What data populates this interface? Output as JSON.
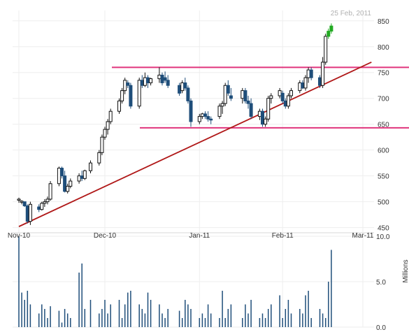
{
  "header": {
    "date_stamp": "25 Feb, 2011"
  },
  "chart_data": [
    {
      "type": "candlestick",
      "ylim": [
        440,
        870
      ],
      "y_ticks": [
        "850",
        "800",
        "750",
        "700",
        "650",
        "600",
        "550",
        "500",
        "450"
      ],
      "x_ticks": [
        "Nov-10",
        "Dec-10",
        "Jan-11",
        "Feb-11",
        "Mar-11"
      ],
      "grid": true,
      "colors": {
        "up": "#ffffff",
        "down": "#1f4e7a",
        "recent": "#22aa22",
        "level": "#e0347c",
        "trend": "#b01818"
      },
      "levels": [
        760,
        643
      ],
      "candles": [
        [
          503,
          508,
          498,
          505,
          1
        ],
        [
          501,
          503,
          495,
          500,
          1
        ],
        [
          500,
          500,
          490,
          492,
          -1
        ],
        [
          492,
          495,
          458,
          462,
          -1
        ],
        [
          462,
          500,
          455,
          495,
          1
        ],
        [
          490,
          495,
          480,
          485,
          -1
        ],
        [
          485,
          500,
          483,
          497,
          1
        ],
        [
          497,
          505,
          490,
          500,
          1
        ],
        [
          500,
          510,
          495,
          505,
          1
        ],
        [
          505,
          540,
          502,
          535,
          1
        ],
        [
          535,
          568,
          530,
          565,
          1
        ],
        [
          565,
          568,
          545,
          550,
          -1
        ],
        [
          550,
          560,
          518,
          520,
          -1
        ],
        [
          520,
          535,
          516,
          530,
          1
        ],
        [
          530,
          545,
          526,
          540,
          1
        ],
        [
          540,
          555,
          535,
          550,
          1
        ],
        [
          550,
          560,
          540,
          545,
          -1
        ],
        [
          545,
          562,
          542,
          560,
          1
        ],
        [
          560,
          580,
          555,
          575,
          1
        ],
        [
          575,
          600,
          570,
          595,
          1
        ],
        [
          595,
          630,
          590,
          625,
          1
        ],
        [
          625,
          645,
          620,
          640,
          1
        ],
        [
          640,
          660,
          630,
          655,
          1
        ],
        [
          655,
          680,
          650,
          675,
          1
        ],
        [
          675,
          700,
          670,
          695,
          1
        ],
        [
          695,
          720,
          690,
          715,
          1
        ],
        [
          715,
          740,
          708,
          735,
          1
        ],
        [
          730,
          735,
          720,
          725,
          -1
        ],
        [
          725,
          730,
          680,
          685,
          -1
        ],
        [
          685,
          740,
          680,
          735,
          1
        ],
        [
          735,
          745,
          720,
          725,
          -1
        ],
        [
          725,
          750,
          722,
          740,
          1
        ],
        [
          740,
          745,
          720,
          730,
          -1
        ],
        [
          730,
          740,
          725,
          738,
          1
        ],
        [
          738,
          760,
          730,
          745,
          1
        ],
        [
          745,
          750,
          725,
          730,
          -1
        ],
        [
          740,
          752,
          730,
          735,
          -1
        ],
        [
          735,
          745,
          720,
          725,
          -1
        ],
        [
          725,
          730,
          705,
          710,
          -1
        ],
        [
          715,
          735,
          710,
          730,
          1
        ],
        [
          730,
          740,
          715,
          720,
          -1
        ],
        [
          720,
          725,
          690,
          695,
          -1
        ],
        [
          695,
          700,
          645,
          655,
          -1
        ],
        [
          655,
          670,
          650,
          665,
          1
        ],
        [
          665,
          672,
          660,
          670,
          1
        ],
        [
          670,
          675,
          660,
          665,
          -1
        ],
        [
          665,
          675,
          655,
          660,
          -1
        ],
        [
          660,
          665,
          650,
          658,
          -1
        ],
        [
          665,
          690,
          660,
          685,
          1
        ],
        [
          685,
          695,
          670,
          690,
          1
        ],
        [
          690,
          730,
          685,
          725,
          1
        ],
        [
          725,
          735,
          705,
          710,
          -1
        ],
        [
          705,
          720,
          695,
          700,
          -1
        ],
        [
          700,
          720,
          690,
          715,
          1
        ],
        [
          715,
          720,
          690,
          695,
          -1
        ],
        [
          695,
          705,
          680,
          690,
          -1
        ],
        [
          690,
          700,
          660,
          665,
          -1
        ],
        [
          665,
          680,
          658,
          675,
          1
        ],
        [
          675,
          680,
          645,
          650,
          -1
        ],
        [
          650,
          665,
          645,
          660,
          1
        ],
        [
          660,
          705,
          655,
          700,
          1
        ],
        [
          700,
          710,
          690,
          705,
          1
        ],
        [
          705,
          720,
          700,
          715,
          1
        ],
        [
          710,
          715,
          690,
          695,
          -1
        ],
        [
          695,
          700,
          680,
          685,
          -1
        ],
        [
          685,
          710,
          680,
          705,
          1
        ],
        [
          705,
          720,
          700,
          715,
          1
        ],
        [
          715,
          735,
          710,
          730,
          1
        ],
        [
          730,
          735,
          718,
          720,
          -1
        ],
        [
          720,
          745,
          715,
          740,
          1
        ],
        [
          740,
          760,
          730,
          755,
          1
        ],
        [
          755,
          760,
          735,
          740,
          -1
        ],
        [
          740,
          745,
          720,
          725,
          -1
        ],
        [
          725,
          780,
          720,
          770,
          1
        ],
        [
          770,
          825,
          765,
          820,
          1
        ],
        [
          820,
          835,
          815,
          830,
          2
        ],
        [
          830,
          845,
          825,
          840,
          2
        ]
      ],
      "candle_dates": [
        "2010-11-01",
        "2010-11-02",
        "2010-11-03",
        "2010-11-04",
        "2010-11-05",
        "2010-11-08",
        "2010-11-09",
        "2010-11-10",
        "2010-11-11",
        "2010-11-12",
        "2010-11-15",
        "2010-11-16",
        "2010-11-17",
        "2010-11-18",
        "2010-11-19",
        "2010-11-22",
        "2010-11-23",
        "2010-11-24",
        "2010-11-26",
        "2010-11-29",
        "2010-11-30",
        "2010-12-01",
        "2010-12-02",
        "2010-12-03",
        "2010-12-06",
        "2010-12-07",
        "2010-12-08",
        "2010-12-09",
        "2010-12-10",
        "2010-12-13",
        "2010-12-14",
        "2010-12-15",
        "2010-12-16",
        "2010-12-17",
        "2010-12-20",
        "2010-12-21",
        "2010-12-22",
        "2010-12-23",
        "2010-12-27",
        "2010-12-28",
        "2010-12-29",
        "2010-12-30",
        "2010-12-31",
        "2011-01-03",
        "2011-01-04",
        "2011-01-05",
        "2011-01-06",
        "2011-01-07",
        "2011-01-10",
        "2011-01-11",
        "2011-01-12",
        "2011-01-13",
        "2011-01-14",
        "2011-01-18",
        "2011-01-19",
        "2011-01-20",
        "2011-01-21",
        "2011-01-24",
        "2011-01-25",
        "2011-01-26",
        "2011-01-27",
        "2011-01-28",
        "2011-01-31",
        "2011-02-01",
        "2011-02-02",
        "2011-02-03",
        "2011-02-04",
        "2011-02-07",
        "2011-02-08",
        "2011-02-09",
        "2011-02-10",
        "2011-02-11",
        "2011-02-14",
        "2011-02-15",
        "2011-02-16",
        "2011-02-17",
        "2011-02-18"
      ],
      "trendline": [
        [
          "2010-11-01",
          452
        ],
        [
          "2011-03-04",
          770
        ]
      ]
    },
    {
      "type": "bar",
      "ylabel": "Millions",
      "ylim": [
        0,
        10
      ],
      "y_ticks": [
        "10.0",
        "5.0",
        "0.0"
      ],
      "grid": true,
      "color": "#1f4e7a",
      "values": [
        10.0,
        3.8,
        3.0,
        4.0,
        2.5,
        1.5,
        2.5,
        2.0,
        1.0,
        2.3,
        1.8,
        0.5,
        2.0,
        1.5,
        1.0,
        6.0,
        7.0,
        2.0,
        3.0,
        1.5,
        2.0,
        3.0,
        1.5,
        2.5,
        3.0,
        1.0,
        2.5,
        3.8,
        4.0,
        2.5,
        2.0,
        1.5,
        3.8,
        3.0,
        2.5,
        1.5,
        1.0,
        2.0,
        1.8,
        1.0,
        3.0,
        2.5,
        2.0,
        1.0,
        1.5,
        1.0,
        2.5,
        1.5,
        1.0,
        4.0,
        1.0,
        2.0,
        2.5,
        1.0,
        2.5,
        1.5,
        3.0,
        1.0,
        1.5,
        1.0,
        2.0,
        2.5,
        3.5,
        1.0,
        2.0,
        3.0,
        1.5,
        2.0,
        1.5,
        3.5,
        4.0,
        1.0,
        2.0,
        1.5,
        1.0,
        5.0,
        8.5
      ],
      "bar_dates": [
        "2010-11-01",
        "2010-11-02",
        "2010-11-03",
        "2010-11-04",
        "2010-11-05",
        "2010-11-08",
        "2010-11-09",
        "2010-11-10",
        "2010-11-11",
        "2010-11-12",
        "2010-11-15",
        "2010-11-16",
        "2010-11-17",
        "2010-11-18",
        "2010-11-19",
        "2010-11-22",
        "2010-11-23",
        "2010-11-24",
        "2010-11-26",
        "2010-11-29",
        "2010-11-30",
        "2010-12-01",
        "2010-12-02",
        "2010-12-03",
        "2010-12-06",
        "2010-12-07",
        "2010-12-08",
        "2010-12-09",
        "2010-12-10",
        "2010-12-13",
        "2010-12-14",
        "2010-12-15",
        "2010-12-16",
        "2010-12-17",
        "2010-12-20",
        "2010-12-21",
        "2010-12-22",
        "2010-12-23",
        "2010-12-27",
        "2010-12-28",
        "2010-12-29",
        "2010-12-30",
        "2010-12-31",
        "2011-01-03",
        "2011-01-04",
        "2011-01-05",
        "2011-01-06",
        "2011-01-07",
        "2011-01-10",
        "2011-01-11",
        "2011-01-12",
        "2011-01-13",
        "2011-01-14",
        "2011-01-18",
        "2011-01-19",
        "2011-01-20",
        "2011-01-21",
        "2011-01-24",
        "2011-01-25",
        "2011-01-26",
        "2011-01-27",
        "2011-01-28",
        "2011-01-31",
        "2011-02-01",
        "2011-02-02",
        "2011-02-03",
        "2011-02-04",
        "2011-02-07",
        "2011-02-08",
        "2011-02-09",
        "2011-02-10",
        "2011-02-11",
        "2011-02-14",
        "2011-02-15",
        "2011-02-16",
        "2011-02-17",
        "2011-02-18"
      ]
    }
  ]
}
